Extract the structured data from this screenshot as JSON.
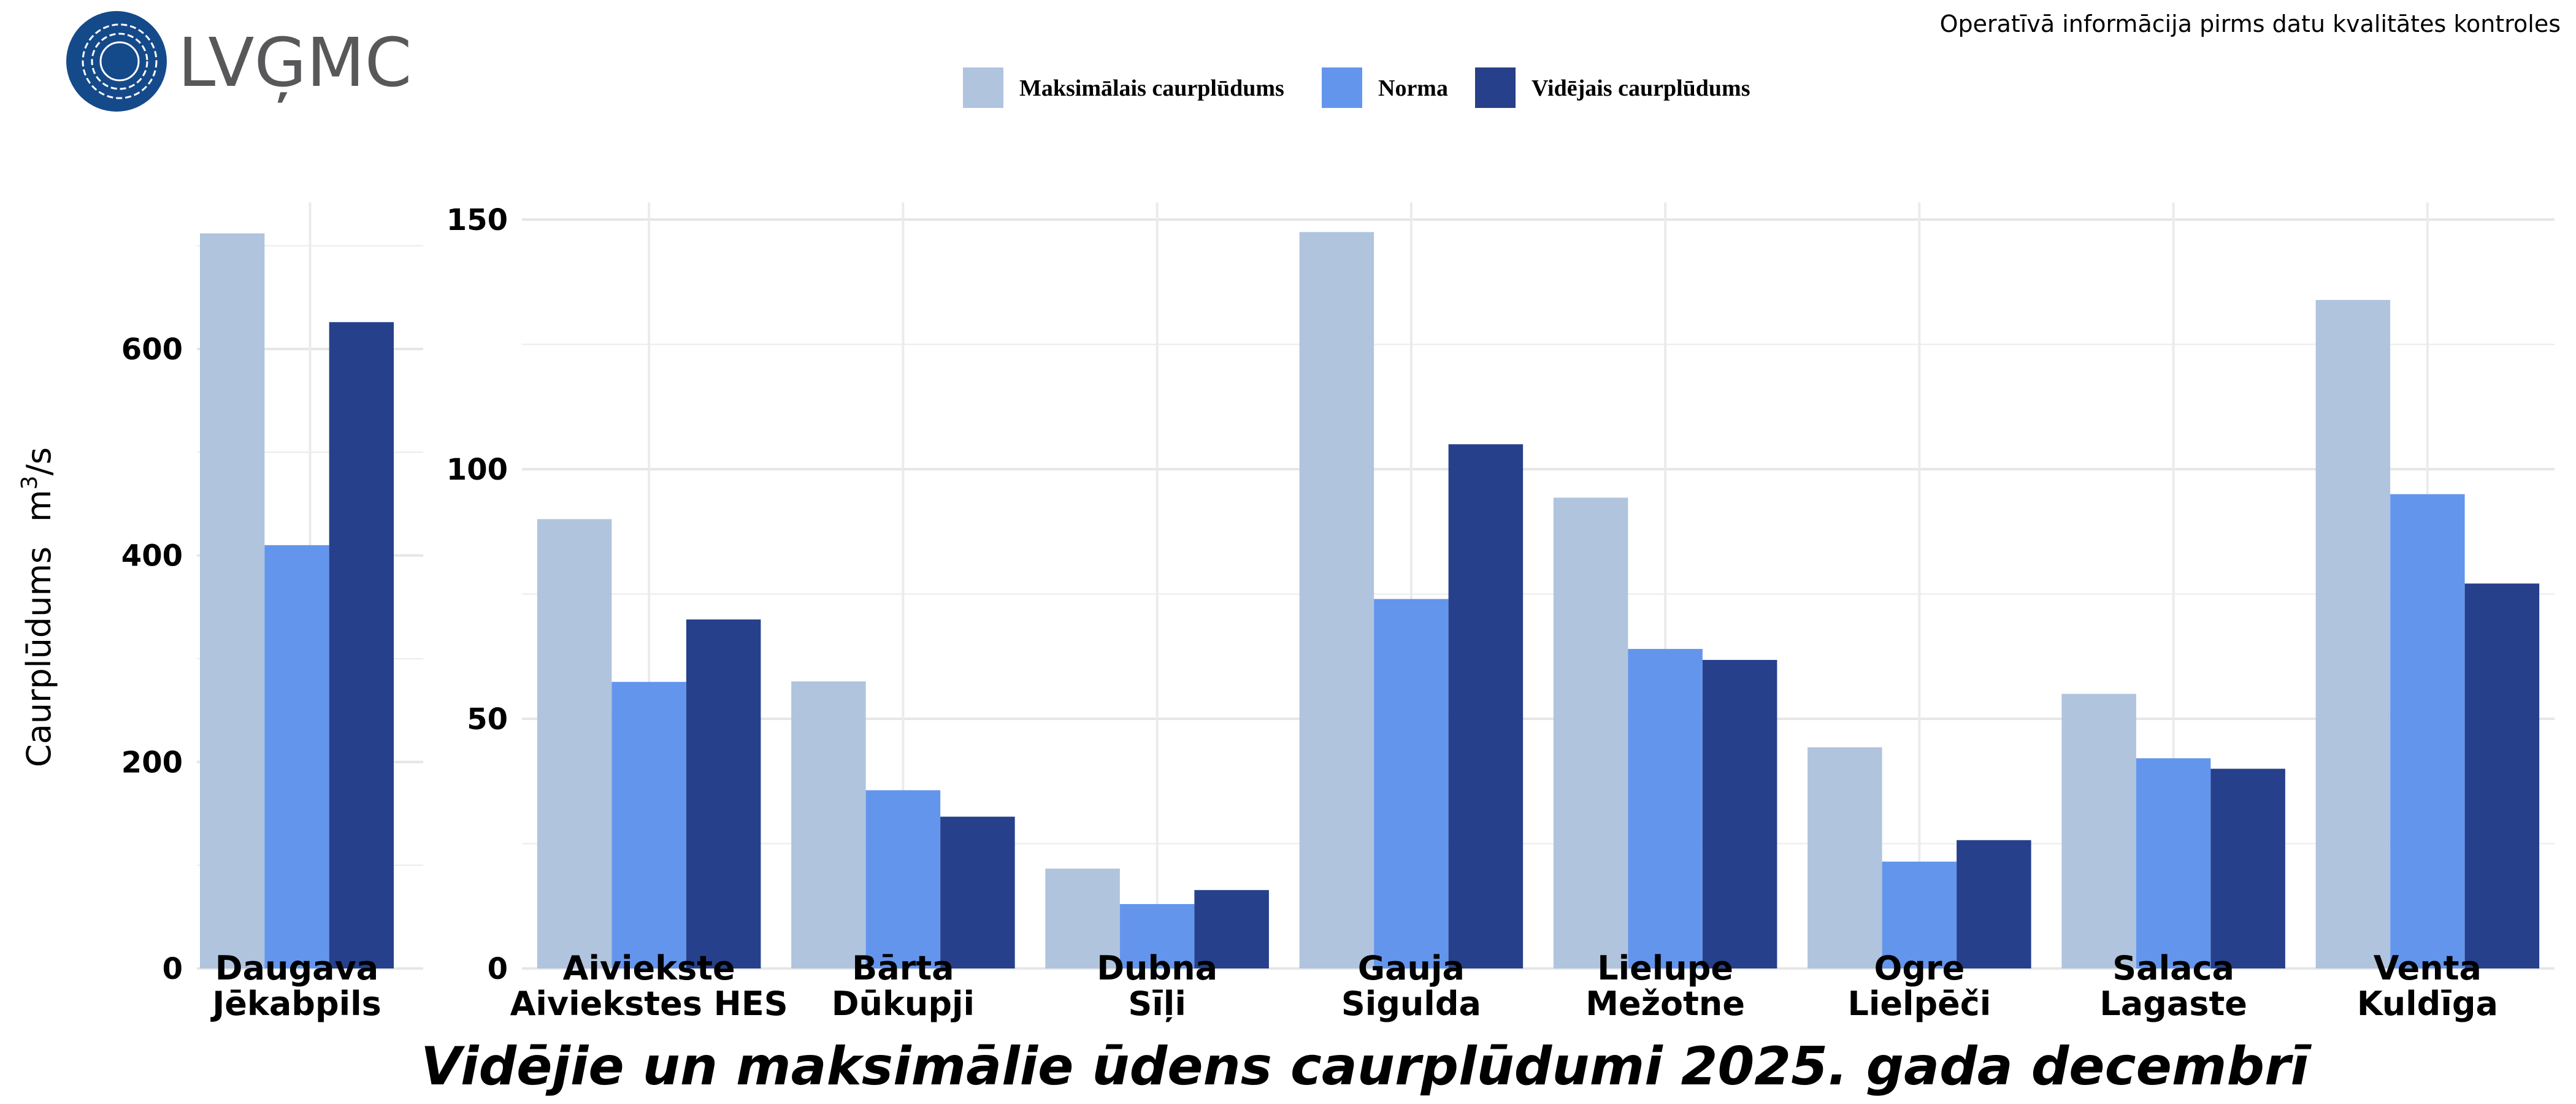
{
  "logo": {
    "text": "LVĢMC",
    "color": "#154a8a"
  },
  "note": "Operatīvā informācija pirms datu kvalitātes kontroles",
  "chart_data": {
    "type": "bar",
    "title": "Vidējie un maksimālie ūdens caurplūdumi 2025. gada decembrī",
    "ylabel": "Caurplūdums",
    "yunit": {
      "base": "m",
      "sup": "3",
      "rest": "/s"
    },
    "legend_position": "top-center",
    "grid": true,
    "series": [
      {
        "name": "Maksimālais caurplūdums",
        "color": "#b0c4de"
      },
      {
        "name": "Norma",
        "color": "#6495ed"
      },
      {
        "name": "Vidējais caurplūdums",
        "color": "#26408b"
      }
    ],
    "panels": [
      {
        "ylim": [
          0,
          720
        ],
        "yticks": [
          "0",
          "200",
          "400",
          "600"
        ],
        "yticks_values": [
          0,
          200,
          400,
          600
        ],
        "categories": [
          [
            "Daugava",
            "Jēkabpils"
          ]
        ],
        "values": [
          [
            712,
            410,
            626
          ]
        ]
      },
      {
        "ylim": [
          0,
          150
        ],
        "yticks": [
          "0",
          "50",
          "100",
          "150"
        ],
        "yticks_values": [
          0,
          50,
          100,
          150
        ],
        "categories": [
          [
            "Aiviekste",
            "Aiviekstes HES"
          ],
          [
            "Bārta",
            "Dūkupji"
          ],
          [
            "Dubna",
            "Sīļi"
          ],
          [
            "Gauja",
            "Sigulda"
          ],
          [
            "Lielupe",
            "Mežotne"
          ],
          [
            "Ogre",
            "Lielpēči"
          ],
          [
            "Salaca",
            "Lagaste"
          ],
          [
            "Venta",
            "Kuldīga"
          ]
        ],
        "values": [
          [
            90,
            57.4,
            69.9
          ],
          [
            57.5,
            35.7,
            30.4
          ],
          [
            20,
            12.9,
            15.7
          ],
          [
            147.5,
            74,
            105
          ],
          [
            94.3,
            64,
            61.8
          ],
          [
            44.3,
            21.4,
            25.7
          ],
          [
            55,
            42.1,
            40
          ],
          [
            133.9,
            95,
            77.1
          ]
        ]
      }
    ]
  }
}
